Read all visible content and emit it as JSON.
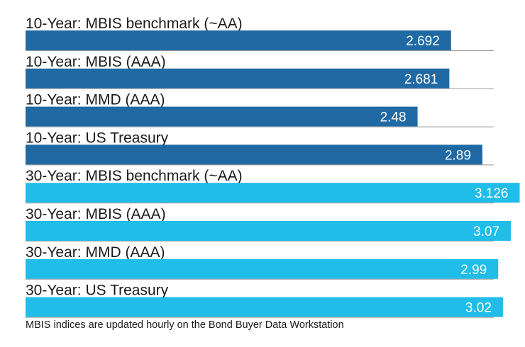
{
  "chart_data": {
    "type": "bar",
    "orientation": "horizontal",
    "categories": [
      "10-Year: MBIS benchmark (~AA)",
      "10-Year: MBIS (AAA)",
      "10-Year: MMD (AAA)",
      "10-Year: US Treasury",
      "30-Year: MBIS benchmark (~AA)",
      "30-Year: MBIS (AAA)",
      "30-Year: MMD (AAA)",
      "30-Year: US Treasury"
    ],
    "values": [
      2.692,
      2.681,
      2.48,
      2.89,
      3.126,
      3.07,
      2.99,
      3.02
    ],
    "value_labels": [
      "2.692",
      "2.681",
      "2.48",
      "2.89",
      "3.126",
      "3.07",
      "2.99",
      "3.02"
    ],
    "bar_colors": [
      "#1f6aa5",
      "#1f6aa5",
      "#1f6aa5",
      "#1f6aa5",
      "#1fbde8",
      "#1fbde8",
      "#1fbde8",
      "#1fbde8"
    ],
    "title": "",
    "xlabel": "",
    "ylabel": "",
    "xlim": [
      0,
      3.2
    ],
    "grid": false,
    "legend": "none"
  },
  "footnote": "MBIS indices are updated hourly on the Bond Buyer Data Workstation"
}
